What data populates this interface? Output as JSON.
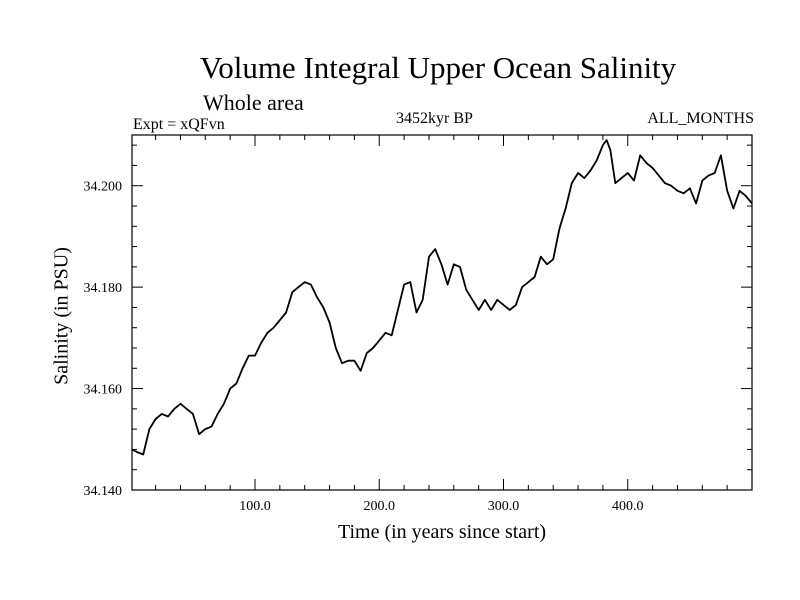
{
  "chart_data": {
    "type": "line",
    "title": "Volume Integral Upper Ocean Salinity",
    "subtitle": "Whole area",
    "left_label": "Expt = xQFvn",
    "center_label": "3452kyr BP",
    "right_label": "ALL_MONTHS",
    "xlabel": "Time (in years since start)",
    "ylabel": "Salinity (in PSU)",
    "xlim": [
      1,
      500
    ],
    "ylim": [
      34.14,
      34.21
    ],
    "x_ticks": [
      100,
      200,
      300,
      400
    ],
    "x_tick_labels": [
      "100.0",
      "200.0",
      "300.0",
      "400.0"
    ],
    "y_ticks": [
      34.14,
      34.16,
      34.18,
      34.2
    ],
    "y_tick_labels": [
      "34.140",
      "34.160",
      "34.180",
      "34.200"
    ],
    "series": [
      {
        "name": "Salinity",
        "color": "#000000",
        "x": [
          1,
          5,
          10,
          15,
          20,
          25,
          30,
          35,
          40,
          45,
          50,
          55,
          60,
          65,
          70,
          75,
          80,
          85,
          90,
          95,
          100,
          105,
          110,
          115,
          120,
          125,
          130,
          135,
          140,
          145,
          150,
          155,
          160,
          165,
          170,
          175,
          180,
          185,
          190,
          195,
          200,
          205,
          210,
          215,
          220,
          225,
          230,
          235,
          240,
          245,
          250,
          255,
          260,
          265,
          270,
          275,
          280,
          285,
          290,
          295,
          300,
          305,
          310,
          315,
          320,
          325,
          330,
          335,
          340,
          345,
          350,
          355,
          360,
          365,
          370,
          375,
          380,
          383,
          386,
          390,
          395,
          400,
          405,
          410,
          415,
          420,
          425,
          430,
          435,
          440,
          445,
          450,
          455,
          460,
          465,
          470,
          475,
          480,
          485,
          490,
          495,
          500
        ],
        "values": [
          34.148,
          34.1475,
          34.147,
          34.152,
          34.154,
          34.155,
          34.1545,
          34.156,
          34.157,
          34.156,
          34.155,
          34.151,
          34.152,
          34.1525,
          34.155,
          34.157,
          34.16,
          34.161,
          34.164,
          34.1665,
          34.1665,
          34.169,
          34.171,
          34.172,
          34.1735,
          34.175,
          34.179,
          34.18,
          34.181,
          34.1805,
          34.178,
          34.176,
          34.173,
          34.168,
          34.165,
          34.1655,
          34.1655,
          34.1635,
          34.167,
          34.168,
          34.1695,
          34.171,
          34.1705,
          34.1755,
          34.1805,
          34.181,
          34.175,
          34.1775,
          34.186,
          34.1875,
          34.1845,
          34.1805,
          34.1845,
          34.184,
          34.1795,
          34.1775,
          34.1755,
          34.1775,
          34.1755,
          34.1775,
          34.1765,
          34.1755,
          34.1765,
          34.18,
          34.181,
          34.182,
          34.186,
          34.1845,
          34.1855,
          34.1915,
          34.1955,
          34.2005,
          34.2025,
          34.2015,
          34.203,
          34.205,
          34.208,
          34.209,
          34.207,
          34.2005,
          34.2015,
          34.2025,
          34.201,
          34.206,
          34.2045,
          34.2035,
          34.202,
          34.2005,
          34.2,
          34.199,
          34.1985,
          34.1995,
          34.1965,
          34.201,
          34.202,
          34.2025,
          34.206,
          34.199,
          34.1955,
          34.199,
          34.198,
          34.1965
        ]
      }
    ]
  }
}
